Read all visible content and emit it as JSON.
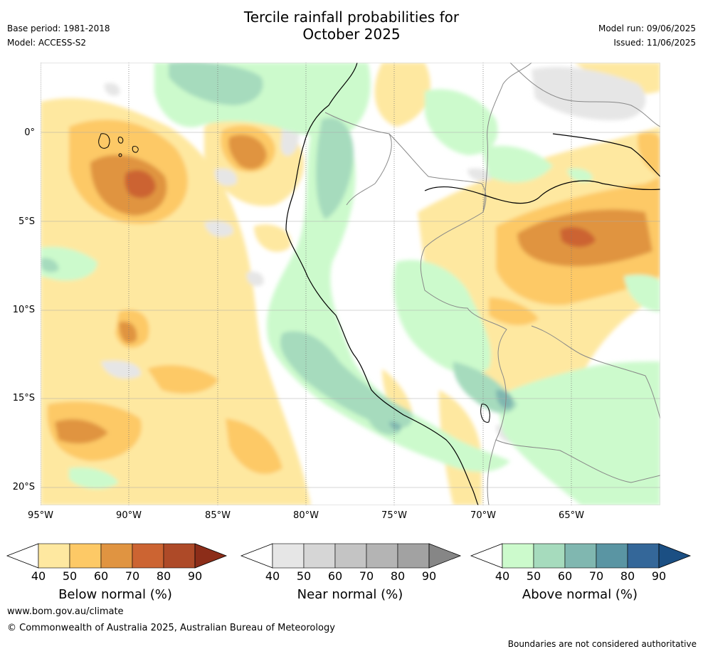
{
  "header": {
    "title_line1": "Tercile rainfall probabilities for",
    "title_line2": "October 2025",
    "base_period": "Base period: 1981-2018",
    "model": "Model: ACCESS-S2",
    "model_run": "Model run: 09/06/2025",
    "issued": "Issued: 11/06/2025"
  },
  "map": {
    "lat_labels": [
      "0°",
      "5°S",
      "10°S",
      "15°S",
      "20°S"
    ],
    "lon_labels": [
      "95°W",
      "90°W",
      "85°W",
      "80°W",
      "75°W",
      "70°W",
      "65°W"
    ]
  },
  "legends": [
    {
      "title": "Below normal (%)",
      "ticks": [
        "40",
        "50",
        "60",
        "70",
        "80",
        "90"
      ],
      "colors": [
        "#fee8a0",
        "#fdc966",
        "#e09441",
        "#cc6432",
        "#ae4a28",
        "#8c2d19"
      ]
    },
    {
      "title": "Near normal (%)",
      "ticks": [
        "40",
        "50",
        "60",
        "70",
        "80",
        "90"
      ],
      "colors": [
        "#e6e6e6",
        "#d6d6d6",
        "#c4c4c4",
        "#b4b4b4",
        "#a2a2a2",
        "#868686"
      ]
    },
    {
      "title": "Above normal (%)",
      "ticks": [
        "40",
        "50",
        "60",
        "70",
        "80",
        "90"
      ],
      "colors": [
        "#ccfacc",
        "#a6dbbd",
        "#80b7b0",
        "#5a95a3",
        "#346799",
        "#1b4f83"
      ]
    }
  ],
  "footer": {
    "website": "www.bom.gov.au/climate",
    "copyright": "© Commonwealth of Australia 2025, Australian Bureau of Meteorology",
    "disclaimer": "Boundaries are not considered authoritative"
  }
}
